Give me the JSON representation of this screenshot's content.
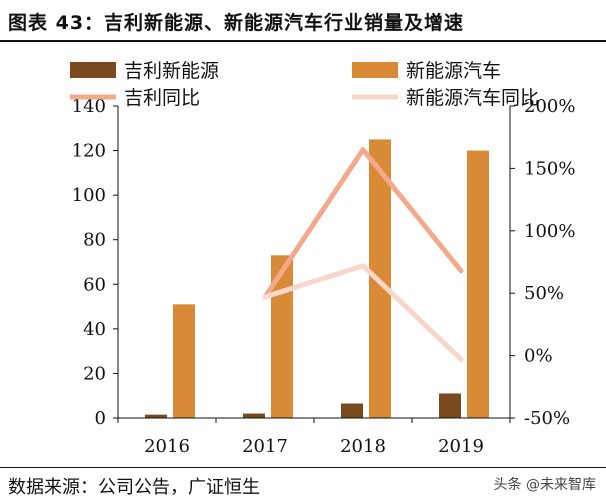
{
  "header": {
    "title": "图表 43：吉利新能源、新能源汽车行业销量及增速"
  },
  "footer": {
    "source": "数据来源：公司公告，广证恒生",
    "watermark": "头条 @未来智库"
  },
  "colors": {
    "geely_bar": "#7a4a1e",
    "industry_bar": "#d98a36",
    "geely_line": "#f2a98c",
    "industry_line": "#f8d6ca"
  },
  "chart_data": {
    "type": "bar",
    "categories": [
      "2016",
      "2017",
      "2018",
      "2019"
    ],
    "series": [
      {
        "name": "吉利新能源",
        "kind": "bar",
        "axis": "left",
        "values": [
          1.5,
          2,
          6.5,
          11
        ]
      },
      {
        "name": "新能源汽车",
        "kind": "bar",
        "axis": "left",
        "values": [
          51,
          73,
          125,
          120
        ]
      },
      {
        "name": "吉利同比",
        "kind": "line",
        "axis": "right",
        "values": [
          null,
          47,
          165,
          68
        ]
      },
      {
        "name": "新能源汽车同比",
        "kind": "line",
        "axis": "right",
        "values": [
          null,
          47,
          72,
          -3
        ]
      }
    ],
    "left_axis": {
      "ylim": [
        0,
        140
      ],
      "ticks": [
        "0",
        "20",
        "40",
        "60",
        "80",
        "100",
        "120",
        "140"
      ]
    },
    "right_axis": {
      "ylim": [
        -50,
        200
      ],
      "ticks": [
        "-50%",
        "0%",
        "50%",
        "100%",
        "150%",
        "200%"
      ]
    },
    "legend_position": "top",
    "grid": false
  }
}
